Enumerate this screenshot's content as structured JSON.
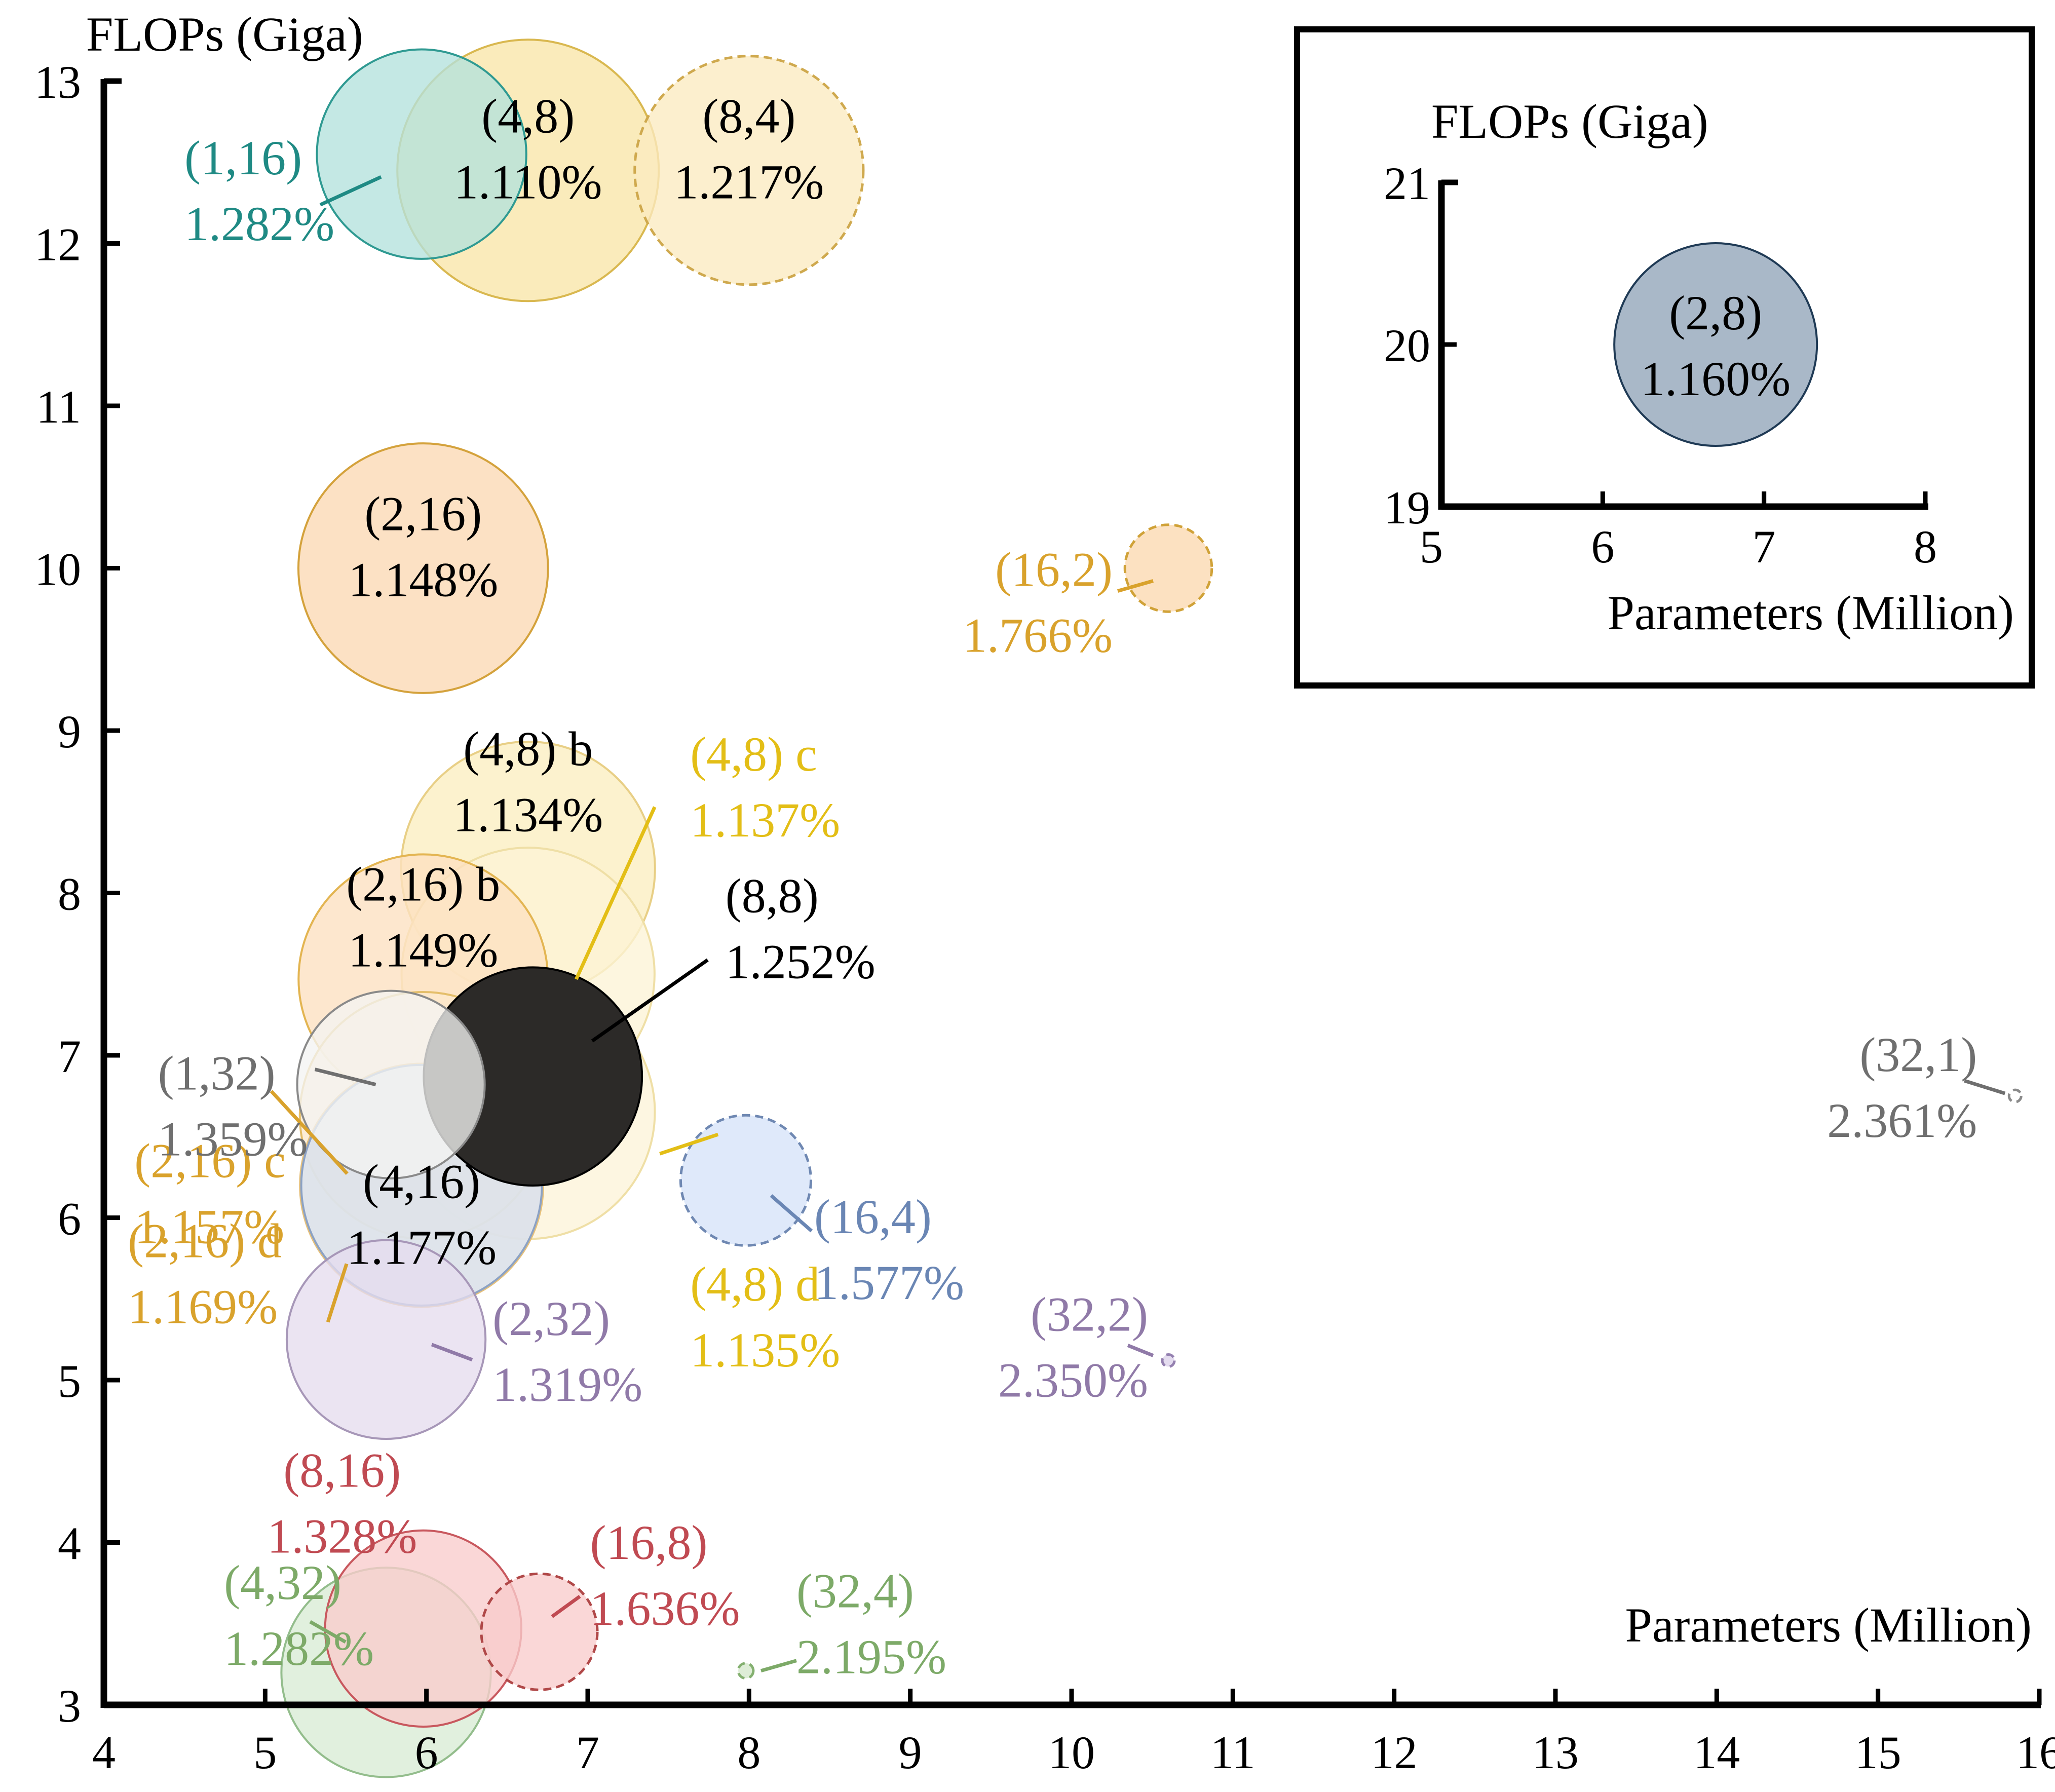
{
  "chart_data": {
    "type": "scatter",
    "main": {
      "xlabel": "Parameters (Million)",
      "ylabel": "FLOPs (Giga)",
      "xlim": [
        4,
        16
      ],
      "ylim": [
        3,
        13
      ],
      "x_ticks": [
        "4",
        "5",
        "6",
        "7",
        "8",
        "9",
        "10",
        "11",
        "12",
        "13",
        "14",
        "15",
        "16"
      ],
      "y_ticks": [
        "3",
        "4",
        "5",
        "6",
        "7",
        "8",
        "9",
        "10",
        "11",
        "12",
        "13"
      ],
      "points": [
        {
          "name": "(4,8)",
          "value": "1.110%",
          "x": 6.63,
          "y": 12.45,
          "error": 1.11,
          "fill": "#f9e6a8",
          "stroke": "#d9b850",
          "dashed": false,
          "text_color": "#000000"
        },
        {
          "name": "(1,16)",
          "value": "1.282%",
          "x": 5.97,
          "y": 12.55,
          "error": 1.282,
          "fill": "#b4e2dc",
          "stroke": "#2f9a92",
          "dashed": false,
          "text_color": "#1f8a84"
        },
        {
          "name": "(8,4)",
          "value": "1.217%",
          "x": 8.0,
          "y": 12.45,
          "error": 1.217,
          "fill": "#fbeac0",
          "stroke": "#cfa94e",
          "dashed": true,
          "text_color": "#000000"
        },
        {
          "name": "(2,16)",
          "value": "1.148%",
          "x": 5.98,
          "y": 10.0,
          "error": 1.148,
          "fill": "#fbd8b4",
          "stroke": "#d4a23c",
          "dashed": false,
          "text_color": "#000000"
        },
        {
          "name": "(16,2)",
          "value": "1.766%",
          "x": 10.6,
          "y": 10.0,
          "error": 1.766,
          "fill": "#fbd9b0",
          "stroke": "#d0a238",
          "dashed": true,
          "text_color": "#d9a22c"
        },
        {
          "name": "(4,8) b",
          "value": "1.134%",
          "x": 6.63,
          "y": 8.15,
          "error": 1.134,
          "fill": "#fbeec0",
          "stroke": "#e8cf86",
          "dashed": false,
          "text_color": "#000000"
        },
        {
          "name": "(4,8)  c",
          "value": "1.137%",
          "x": 6.63,
          "y": 7.5,
          "error": 1.137,
          "fill": "#fdf3d6",
          "stroke": "#efdfa6",
          "dashed": false,
          "text_color": "#e3be16"
        },
        {
          "name": "(2,16) b",
          "value": "1.149%",
          "x": 5.98,
          "y": 7.47,
          "error": 1.149,
          "fill": "#fce0c0",
          "stroke": "#e3b552",
          "dashed": false,
          "text_color": "#000000"
        },
        {
          "name": "(2,16) c",
          "value": "1.157%",
          "x": 5.98,
          "y": 6.63,
          "error": 1.157,
          "fill": "#fce9cc",
          "stroke": "#e4be6a",
          "dashed": false,
          "text_color": "#d9a22c"
        },
        {
          "name": "(8,8)",
          "value": "1.252%",
          "x": 6.66,
          "y": 6.87,
          "error": 1.252,
          "fill": "#2c2a28",
          "stroke": "#000000",
          "dashed": false,
          "text_color": "#000000"
        },
        {
          "name": "(4,8) d",
          "value": "1.135%",
          "x": 6.63,
          "y": 6.65,
          "error": 1.135,
          "fill": "#fdf4d8",
          "stroke": "#efdfa6",
          "dashed": false,
          "text_color": "#e3be16"
        },
        {
          "name": "(1,32)",
          "value": "1.359%",
          "x": 5.78,
          "y": 6.82,
          "error": 1.359,
          "fill": "#f4f4f2",
          "stroke": "#8a8a8a",
          "dashed": false,
          "text_color": "#6f6f6f"
        },
        {
          "name": "(4,16)",
          "value": "1.177%",
          "x": 5.97,
          "y": 6.2,
          "error": 1.177,
          "fill": "#d6e1f2",
          "stroke": "#8ca2c4",
          "dashed": false,
          "text_color": "#000000"
        },
        {
          "name": "(2,16) d",
          "value": "1.169%",
          "x": 5.97,
          "y": 6.2,
          "error": 1.169,
          "fill": "#fbe6c4",
          "stroke": "#e6c07a",
          "dashed": false,
          "text_color": "#d9a22c"
        },
        {
          "name": "(16,4)",
          "value": "1.577%",
          "x": 7.98,
          "y": 6.23,
          "error": 1.577,
          "fill": "#d6e3f8",
          "stroke": "#6f88b2",
          "dashed": true,
          "text_color": "#6a86b4"
        },
        {
          "name": "(2,32)",
          "value": "1.319%",
          "x": 5.75,
          "y": 5.25,
          "error": 1.319,
          "fill": "#e6ddee",
          "stroke": "#a797b8",
          "dashed": false,
          "text_color": "#907aa8"
        },
        {
          "name": "(32,2)",
          "value": "2.350%",
          "x": 10.6,
          "y": 5.12,
          "error": 2.35,
          "fill": "#ddd2ea",
          "stroke": "#9480b0",
          "dashed": true,
          "text_color": "#907aa8"
        },
        {
          "name": "(32,1)",
          "value": "2.361%",
          "x": 15.85,
          "y": 6.75,
          "error": 2.361,
          "fill": "#ffffff",
          "stroke": "#8a8a8a",
          "dashed": true,
          "text_color": "#6f6f6f"
        },
        {
          "name": "(8,16)",
          "value": "1.328%",
          "x": 5.98,
          "y": 3.47,
          "error": 1.328,
          "fill": "#f8cccc",
          "stroke": "#c8585e",
          "dashed": false,
          "text_color": "#c04a52"
        },
        {
          "name": "(4,32)",
          "value": "1.282%",
          "x": 5.75,
          "y": 3.2,
          "error": 1.282,
          "fill": "#d9ecd5",
          "stroke": "#93bd8c",
          "dashed": false,
          "text_color": "#7daa68"
        },
        {
          "name": "(16,8)",
          "value": "1.636%",
          "x": 6.7,
          "y": 3.45,
          "error": 1.636,
          "fill": "#f8cccc",
          "stroke": "#b04848",
          "dashed": true,
          "text_color": "#c04a52"
        },
        {
          "name": "(32,4)",
          "value": "2.195%",
          "x": 7.98,
          "y": 3.21,
          "error": 2.195,
          "fill": "#d5e8cc",
          "stroke": "#84b070",
          "dashed": true,
          "text_color": "#7daa68"
        }
      ]
    },
    "inset": {
      "xlabel": "Parameters (Million)",
      "ylabel": "FLOPs (Giga)",
      "xlim": [
        5,
        8
      ],
      "ylim": [
        19,
        21
      ],
      "x_ticks": [
        "5",
        "6",
        "7",
        "8"
      ],
      "y_ticks": [
        "19",
        "20",
        "21"
      ],
      "points": [
        {
          "name": "(2,8)",
          "value": "1.160%",
          "x": 6.7,
          "y": 20.0,
          "error": 1.16,
          "fill": "#a9b8c8",
          "stroke": "#1f3a55",
          "dashed": false,
          "text_color": "#000000"
        }
      ]
    }
  }
}
